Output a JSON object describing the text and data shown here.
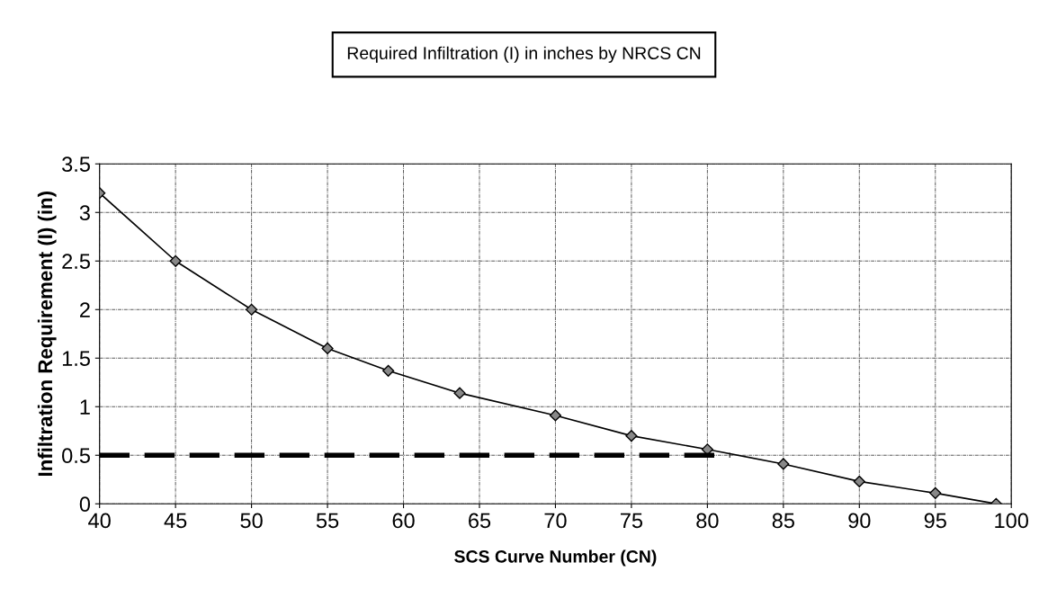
{
  "chart_data": {
    "type": "line",
    "title": "Required Infiltration (I) in inches by NRCS CN",
    "xlabel": "SCS Curve Number (CN)",
    "ylabel": "Infiltration Requirement (I) (in)",
    "series": [
      {
        "color": "#000000",
        "marker": "diamond",
        "line_style": "solid",
        "x": [
          40,
          45,
          50,
          55,
          59,
          63.7,
          70,
          75,
          80,
          85,
          90,
          95,
          99
        ],
        "values": [
          3.2,
          2.5,
          2.0,
          1.6,
          1.37,
          1.14,
          0.91,
          0.7,
          0.56,
          0.41,
          0.23,
          0.11,
          0
        ]
      },
      {
        "color": "#000000",
        "marker": "none",
        "line_style": "dashed",
        "x": [
          40,
          81.5
        ],
        "values": [
          0.5,
          0.5
        ]
      }
    ],
    "xlim": [
      40,
      100
    ],
    "xticks": [
      40,
      45,
      50,
      55,
      60,
      65,
      70,
      75,
      80,
      85,
      90,
      95,
      100
    ],
    "ylim": [
      0,
      3.5
    ],
    "yticks": [
      0,
      0.5,
      1,
      1.5,
      2,
      2.5,
      3,
      3.5
    ],
    "grid": true,
    "legend": false
  }
}
